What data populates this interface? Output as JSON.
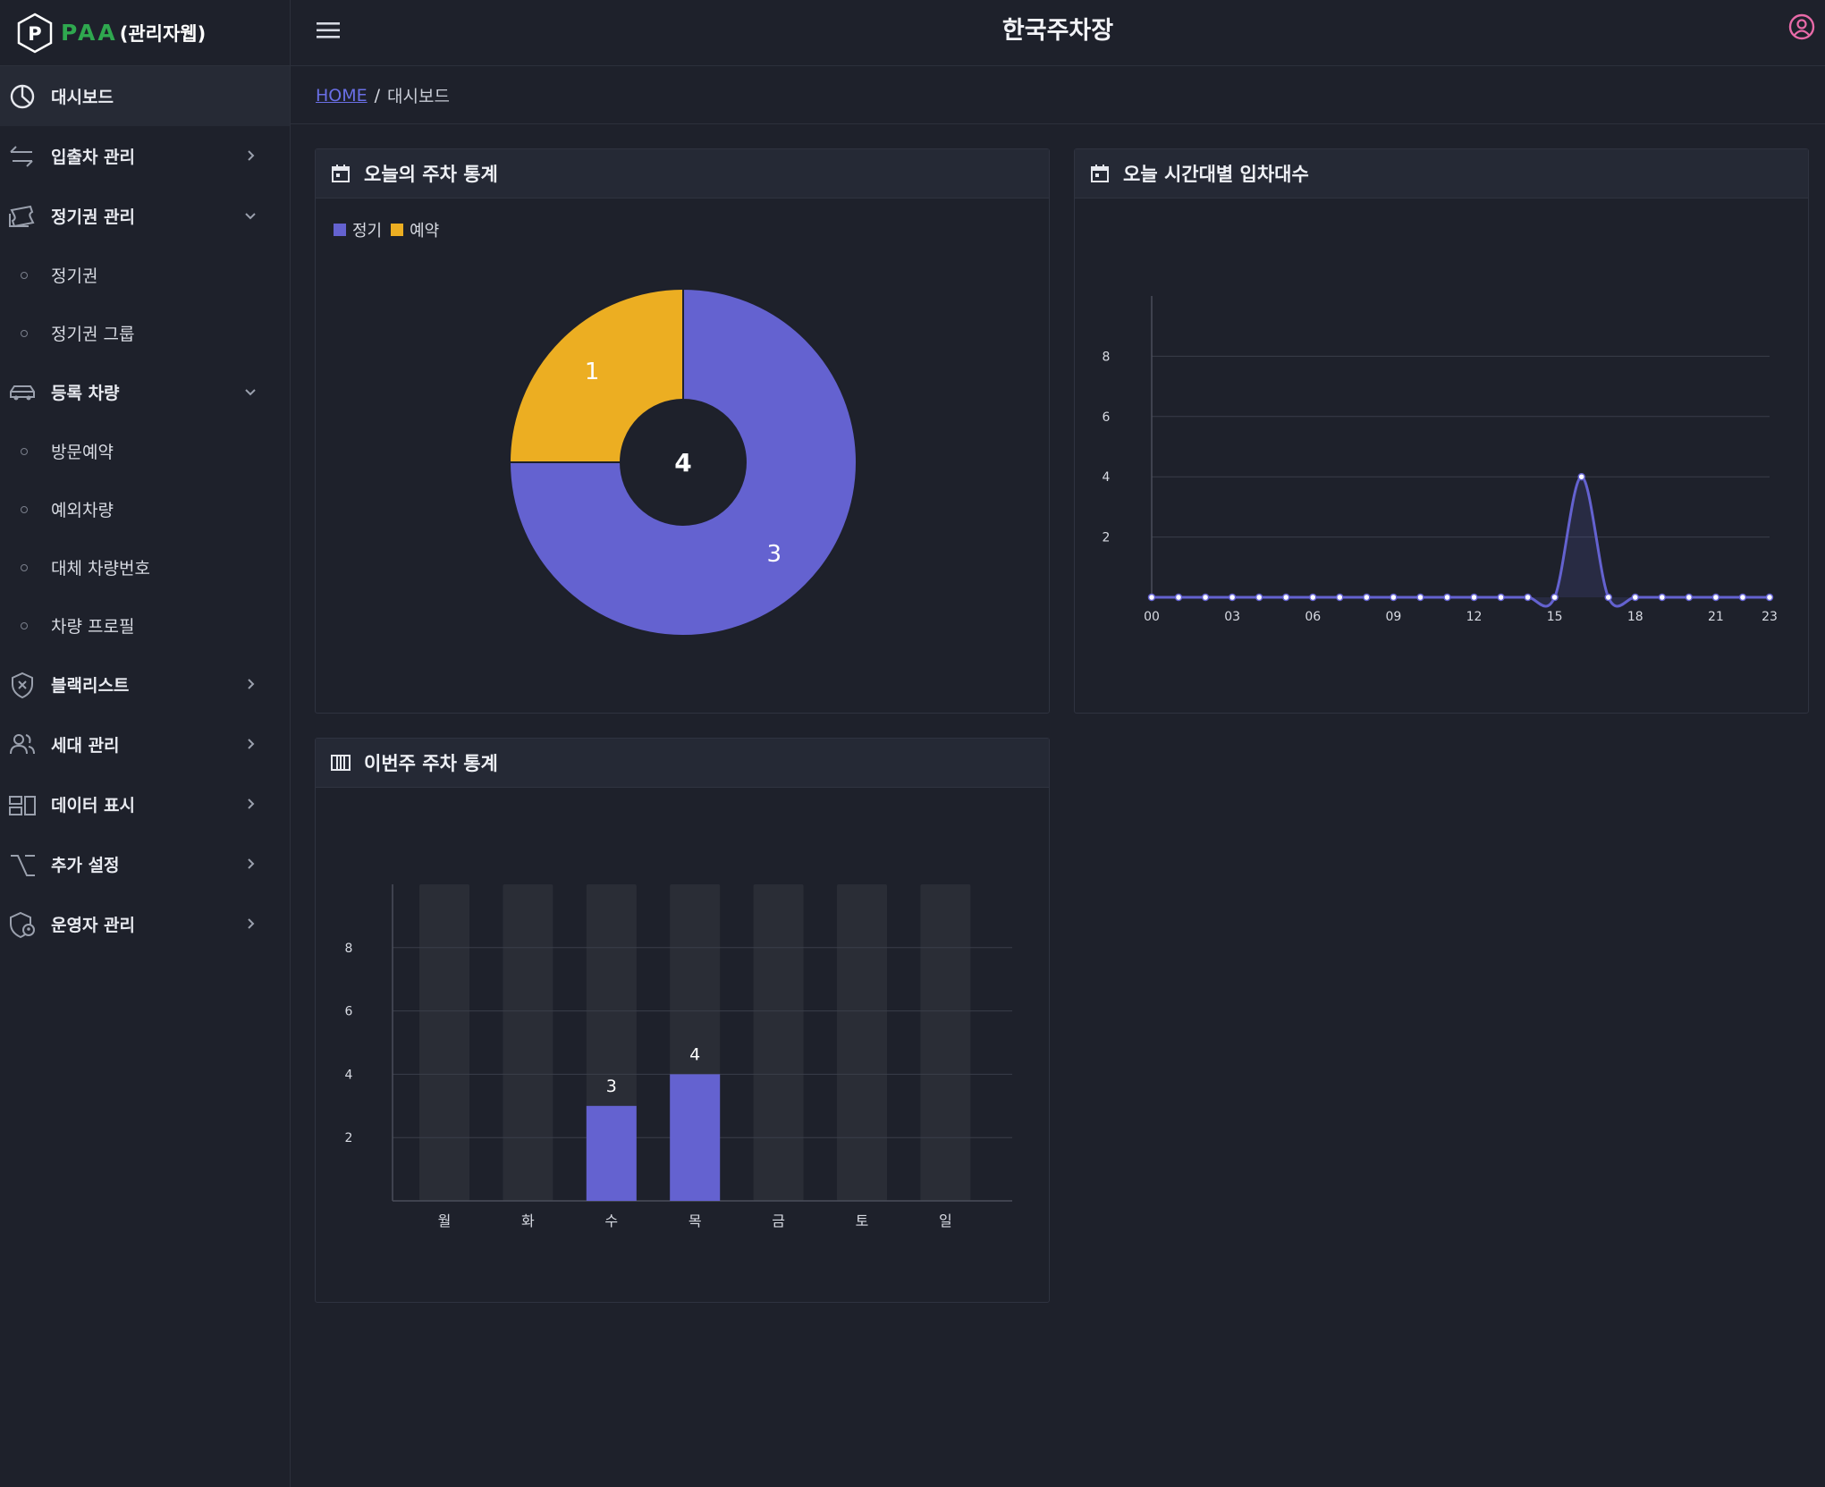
{
  "brand": {
    "logo_mark": "P",
    "name": "PAA",
    "suffix": "(관리자웹)",
    "accent": "#2fa84f"
  },
  "header": {
    "title": "한국주차장",
    "menu_icon": "hamburger-icon",
    "user_icon": "user-circle-icon",
    "user_icon_color": "#e86aa8"
  },
  "breadcrumb": {
    "home": "HOME",
    "separator": "/",
    "current": "대시보드"
  },
  "sidebar": {
    "items": [
      {
        "label": "대시보드",
        "icon": "pie-chart-icon",
        "active": true
      },
      {
        "label": "입출차 관리",
        "icon": "arrows-exchange-icon",
        "chevron": "right"
      },
      {
        "label": "정기권 관리",
        "icon": "ticket-icon",
        "chevron": "down",
        "children": [
          "정기권",
          "정기권 그룹"
        ]
      },
      {
        "label": "등록 차량",
        "icon": "car-icon",
        "chevron": "down",
        "children": [
          "방문예약",
          "예외차량",
          "대체 차량번호",
          "차량 프로필"
        ]
      },
      {
        "label": "블랙리스트",
        "icon": "shield-x-icon",
        "chevron": "right"
      },
      {
        "label": "세대 관리",
        "icon": "users-icon",
        "chevron": "right"
      },
      {
        "label": "데이터 표시",
        "icon": "layout-icon",
        "chevron": "right"
      },
      {
        "label": "추가 설정",
        "icon": "option-icon",
        "chevron": "right"
      },
      {
        "label": "운영자 관리",
        "icon": "shield-user-icon",
        "chevron": "right"
      }
    ]
  },
  "colors": {
    "primary": "#6462d0",
    "secondary": "#ecae22",
    "bar_bg": "#2a2d36",
    "grid": "#3a3e4a"
  },
  "cards": {
    "today": {
      "title": "오늘의 주차 통계",
      "icon": "calendar-icon"
    },
    "hourly": {
      "title": "오늘 시간대별 입차대수",
      "icon": "calendar-icon"
    },
    "weekly": {
      "title": "이번주 주차 통계",
      "icon": "columns-icon"
    }
  },
  "chart_data": [
    {
      "type": "pie",
      "variant": "donut",
      "labels": [
        "정기",
        "예약"
      ],
      "values": [
        3,
        1
      ],
      "total": 4,
      "legend": "top-left"
    },
    {
      "type": "line",
      "x": [
        "00",
        "01",
        "02",
        "03",
        "04",
        "05",
        "06",
        "07",
        "08",
        "09",
        "10",
        "11",
        "12",
        "13",
        "14",
        "15",
        "16",
        "17",
        "18",
        "19",
        "20",
        "21",
        "22",
        "23"
      ],
      "x_ticks": [
        "00",
        "03",
        "06",
        "09",
        "12",
        "15",
        "18",
        "21",
        "23"
      ],
      "values": [
        0,
        0,
        0,
        0,
        0,
        0,
        0,
        0,
        0,
        0,
        0,
        0,
        0,
        0,
        0,
        0,
        4,
        0,
        0,
        0,
        0,
        0,
        0,
        0
      ],
      "yticks": [
        2,
        4,
        6,
        8
      ],
      "ylim": [
        0,
        10
      ],
      "grid": true,
      "smooth": true
    },
    {
      "type": "bar",
      "categories": [
        "월",
        "화",
        "수",
        "목",
        "금",
        "토",
        "일"
      ],
      "values": [
        0,
        0,
        3,
        4,
        0,
        0,
        0
      ],
      "yticks": [
        2,
        4,
        6,
        8
      ],
      "ylim": [
        0,
        10
      ],
      "grid": true,
      "background_bars": true
    }
  ]
}
